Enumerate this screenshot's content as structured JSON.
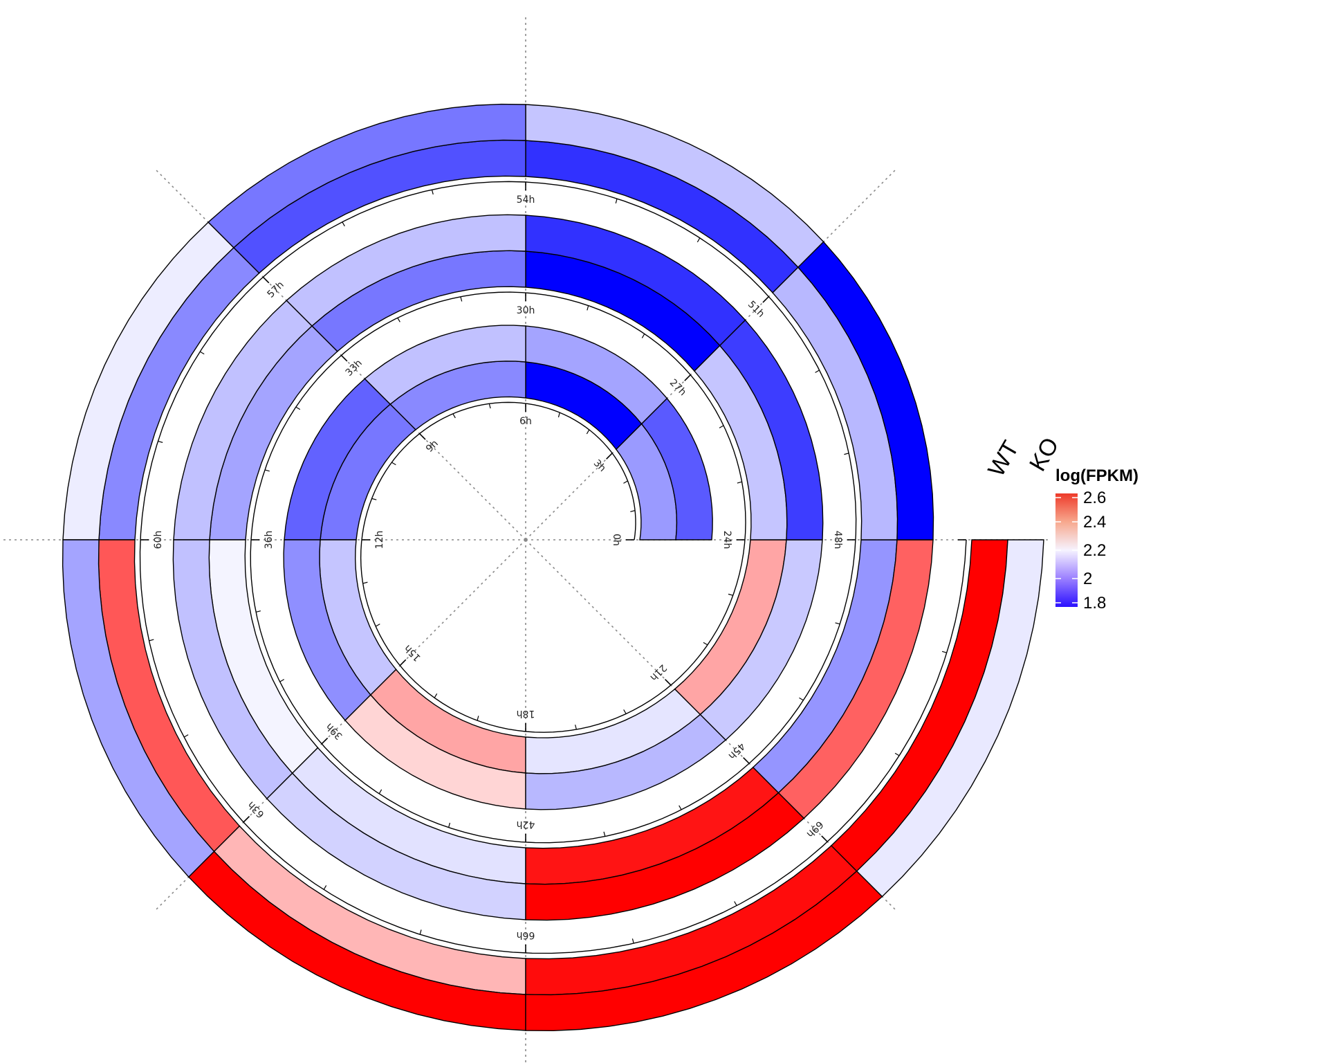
{
  "chart_data": {
    "type": "heatmap",
    "subtype": "circular-spiral",
    "title": "",
    "hours": [
      0,
      3,
      6,
      9,
      12,
      15,
      18,
      21,
      24,
      27,
      30,
      33,
      36,
      39,
      42,
      45,
      48,
      51,
      54,
      57,
      60,
      63,
      66,
      69
    ],
    "hour_labels": [
      "0h",
      "3h",
      "6h",
      "9h",
      "12h",
      "15h",
      "18h",
      "21h",
      "24h",
      "27h",
      "30h",
      "33h",
      "36h",
      "39h",
      "42h",
      "45h",
      "48h",
      "51h",
      "54h",
      "57h",
      "60h",
      "63h",
      "66h",
      "69h"
    ],
    "series": [
      {
        "name": "WT",
        "values": [
          1.96,
          1.8,
          1.93,
          1.9,
          2.05,
          2.27,
          2.13,
          2.27,
          2.05,
          1.78,
          1.9,
          1.98,
          2.17,
          2.12,
          2.55,
          1.95,
          2.02,
          1.82,
          1.85,
          1.93,
          2.4,
          2.25,
          2.57,
          2.65
        ]
      },
      {
        "name": "KO",
        "values": [
          1.86,
          1.98,
          2.04,
          1.87,
          1.94,
          2.22,
          2.02,
          2.06,
          1.83,
          1.82,
          2.04,
          2.04,
          2.04,
          2.08,
          2.61,
          2.38,
          1.72,
          2.05,
          1.9,
          2.15,
          1.98,
          2.61,
          2.61,
          2.14
        ]
      }
    ],
    "legend": {
      "title": "log(FPKM)",
      "ticks": [
        "2.6",
        "2.4",
        "2.2",
        "2",
        "1.8"
      ],
      "tick_values": [
        2.6,
        2.4,
        2.2,
        2.0,
        1.8
      ],
      "range": [
        1.8,
        2.6
      ],
      "colors": {
        "low": "#0000ff",
        "mid": "#ffffff",
        "high": "#ff0000",
        "midpoint": 2.2
      },
      "placement": "right"
    },
    "grid": true
  }
}
